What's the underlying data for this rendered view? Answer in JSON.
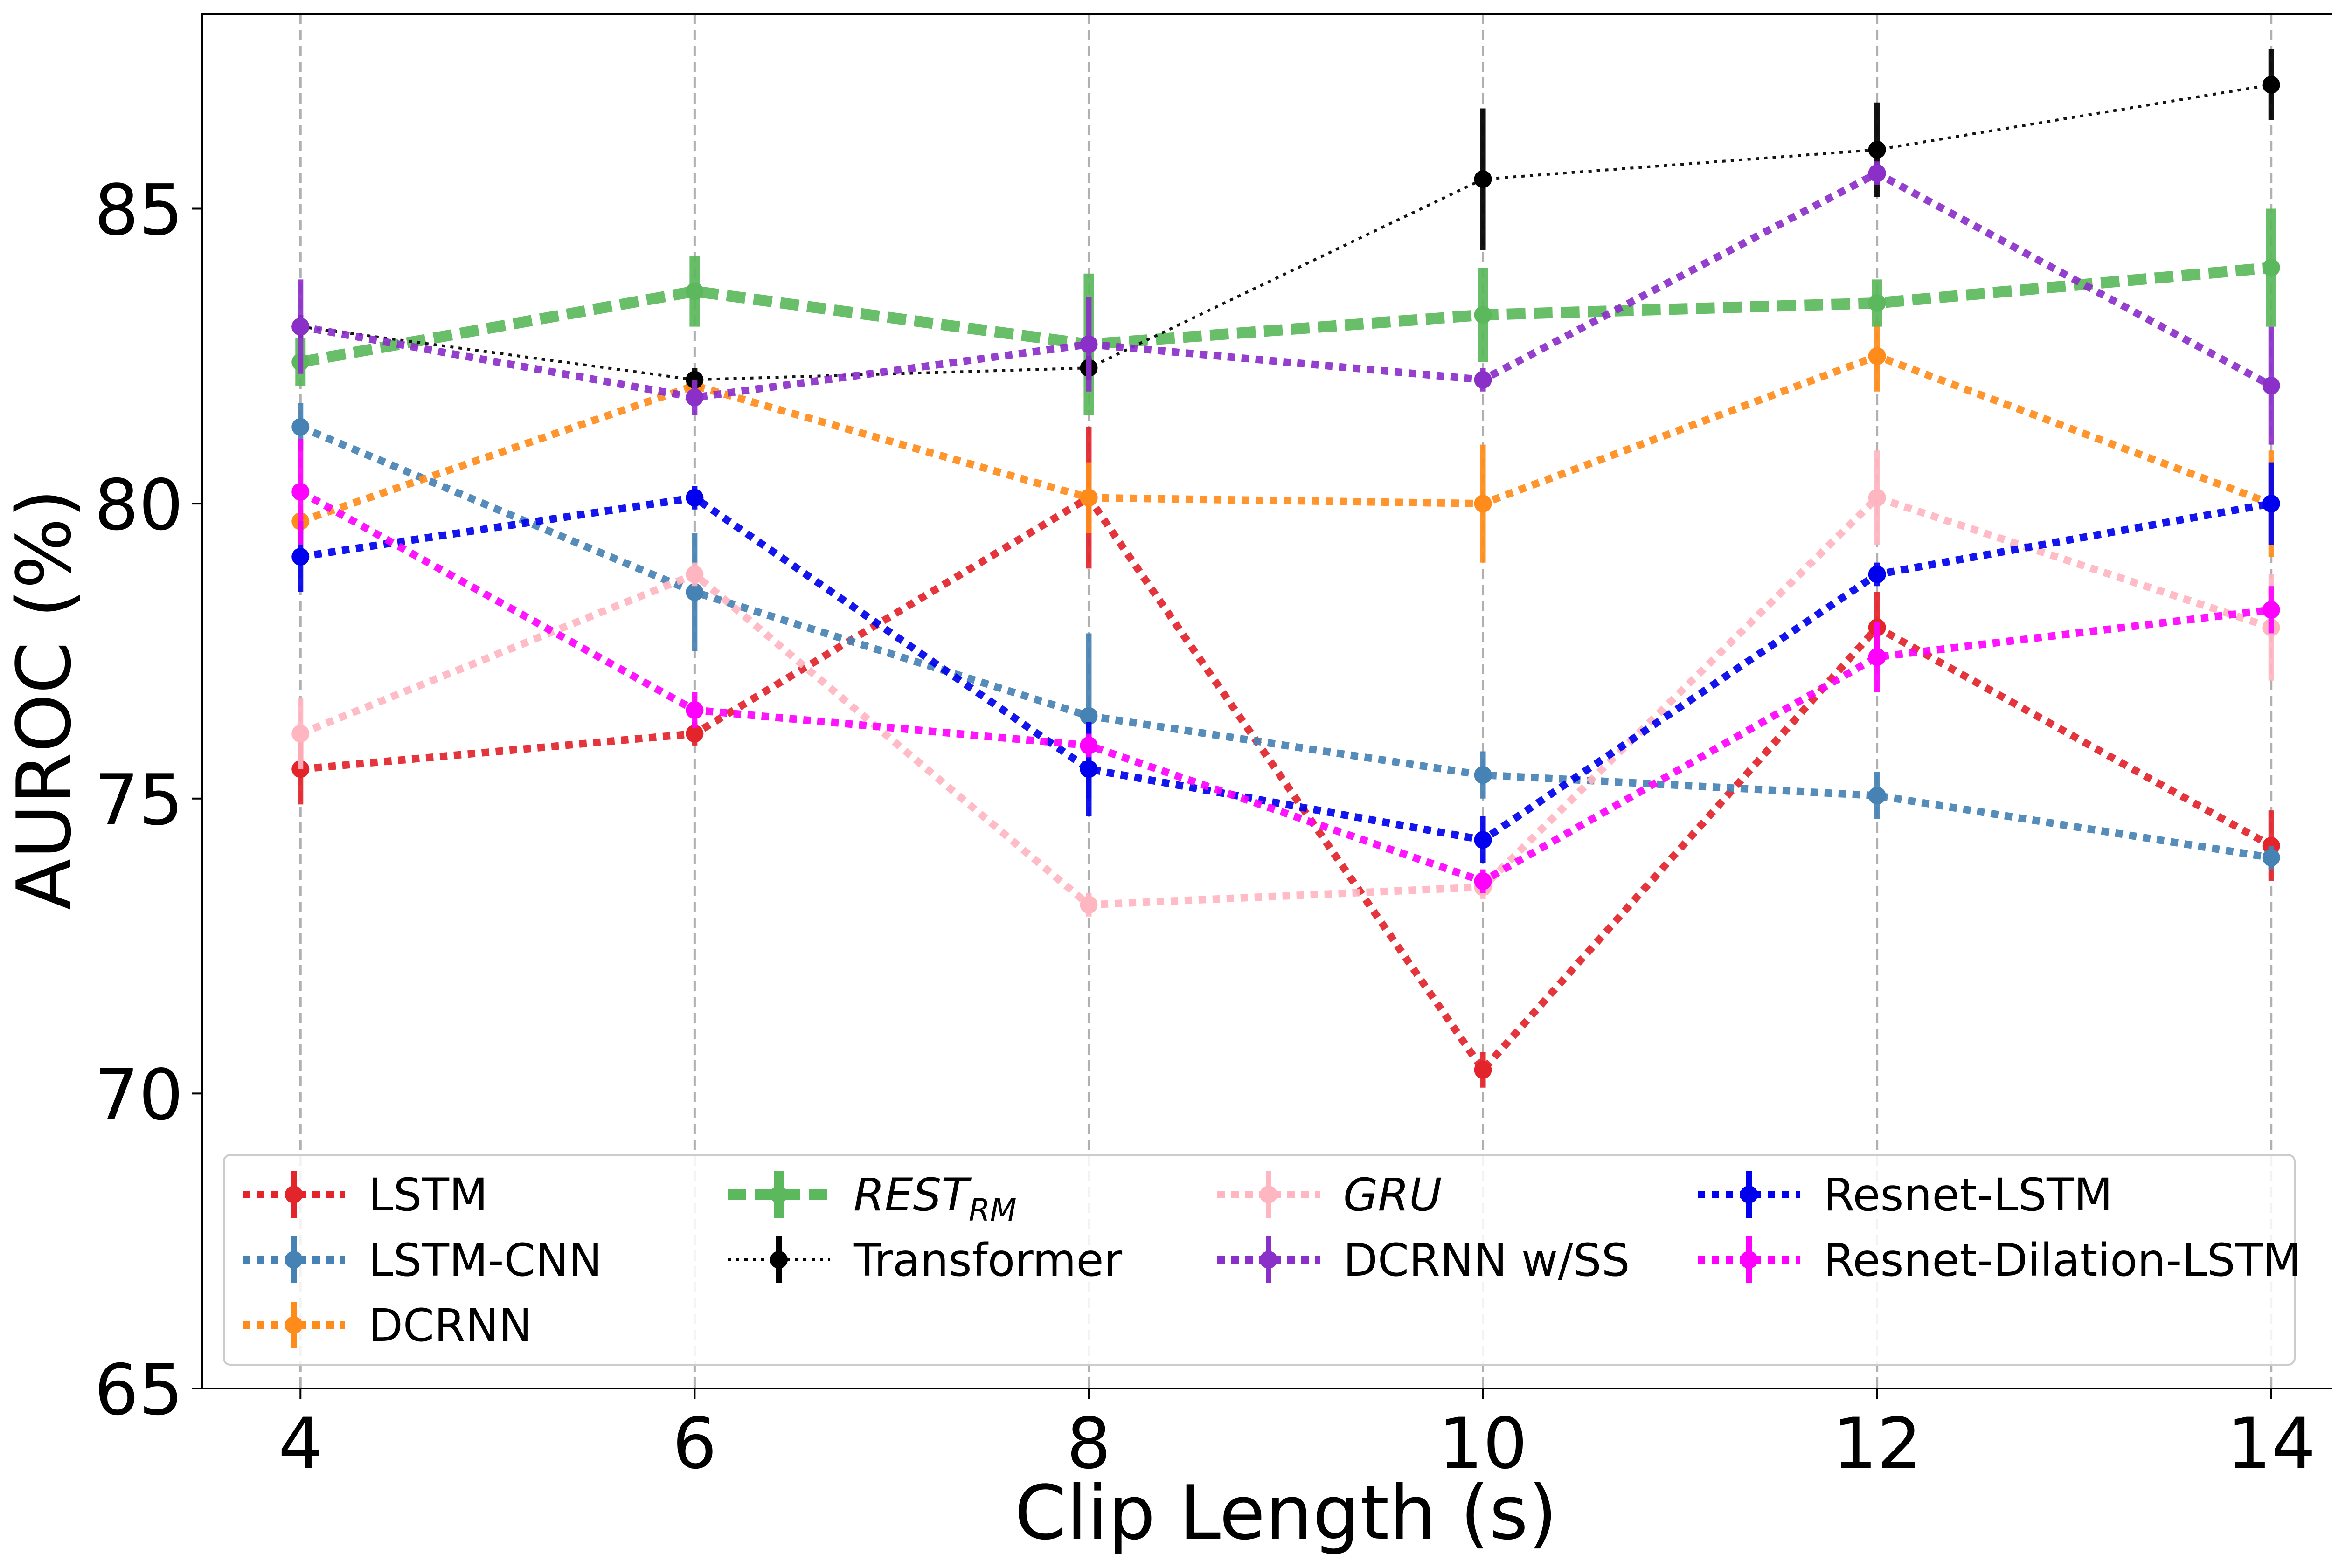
{
  "chart_data": {
    "type": "line",
    "title": "",
    "xlabel": "Clip Length (s)",
    "ylabel": "AUROC (%)",
    "x": [
      4,
      6,
      8,
      10,
      12,
      14
    ],
    "xlim": [
      3.5,
      14.5
    ],
    "ylim": [
      65,
      88.3
    ],
    "xticks": [
      "4",
      "6",
      "8",
      "10",
      "12",
      "14"
    ],
    "yticks": [
      "65",
      "70",
      "75",
      "80",
      "85"
    ],
    "grid": "vertical dashed lines at x ticks",
    "legend_placement": "lower center",
    "series": [
      {
        "name": "LSTM",
        "color": "#e3242b",
        "style": "dotted",
        "values": [
          75.5,
          76.1,
          80.1,
          70.4,
          77.9,
          74.2
        ],
        "errors": [
          0.6,
          0.2,
          1.2,
          0.3,
          0.6,
          0.6
        ]
      },
      {
        "name": "LSTM-CNN",
        "color": "#4682b4",
        "style": "dotted",
        "values": [
          81.3,
          78.5,
          76.4,
          75.4,
          75.05,
          74.0
        ],
        "errors": [
          0.4,
          1.0,
          1.4,
          0.4,
          0.4,
          0.2
        ]
      },
      {
        "name": "DCRNN",
        "color": "#ff8c1a",
        "style": "dotted",
        "values": [
          79.7,
          82.0,
          80.1,
          80.0,
          82.5,
          80.0
        ],
        "errors": [
          0.2,
          0.2,
          0.6,
          1.0,
          0.6,
          0.9
        ]
      },
      {
        "name": "REST",
        "name_sub": "RM",
        "color": "#5cb85c",
        "style": "dashed",
        "values": [
          82.4,
          83.6,
          82.7,
          83.2,
          83.4,
          84.0
        ],
        "errors": [
          0.4,
          0.6,
          1.2,
          0.8,
          0.4,
          1.0
        ]
      },
      {
        "name": "Transformer",
        "color": "#000000",
        "style": "thin-dotted",
        "values": [
          83.0,
          82.1,
          82.3,
          85.5,
          86.0,
          87.1
        ],
        "errors": [
          0.2,
          0.2,
          0.2,
          1.2,
          0.8,
          0.6
        ]
      },
      {
        "name": "GRU",
        "color": "#ffb6c1",
        "style": "dotted",
        "values": [
          76.1,
          78.8,
          73.2,
          73.5,
          80.1,
          77.9
        ],
        "errors": [
          0.6,
          0.2,
          0.2,
          0.2,
          0.8,
          0.9
        ]
      },
      {
        "name": "DCRNN w/SS",
        "color": "#8b2fc9",
        "style": "dotted",
        "values": [
          83.0,
          81.8,
          82.7,
          82.1,
          85.6,
          82.0
        ],
        "errors": [
          0.8,
          0.3,
          0.8,
          0.2,
          0.2,
          1.0
        ]
      },
      {
        "name": "Resnet-LSTM",
        "color": "#0000ee",
        "style": "dotted",
        "values": [
          79.1,
          80.1,
          75.5,
          74.3,
          78.8,
          80.0
        ],
        "errors": [
          0.6,
          0.2,
          0.8,
          0.4,
          0.2,
          0.7
        ]
      },
      {
        "name": "Resnet-Dilation-LSTM",
        "color": "#ff00ff",
        "style": "dotted",
        "values": [
          80.2,
          76.5,
          75.9,
          73.6,
          77.4,
          78.2
        ],
        "errors": [
          0.9,
          0.3,
          0.2,
          0.2,
          0.6,
          0.4
        ]
      }
    ],
    "legend_order": [
      0,
      3,
      5,
      7,
      1,
      4,
      6,
      8,
      2
    ]
  }
}
